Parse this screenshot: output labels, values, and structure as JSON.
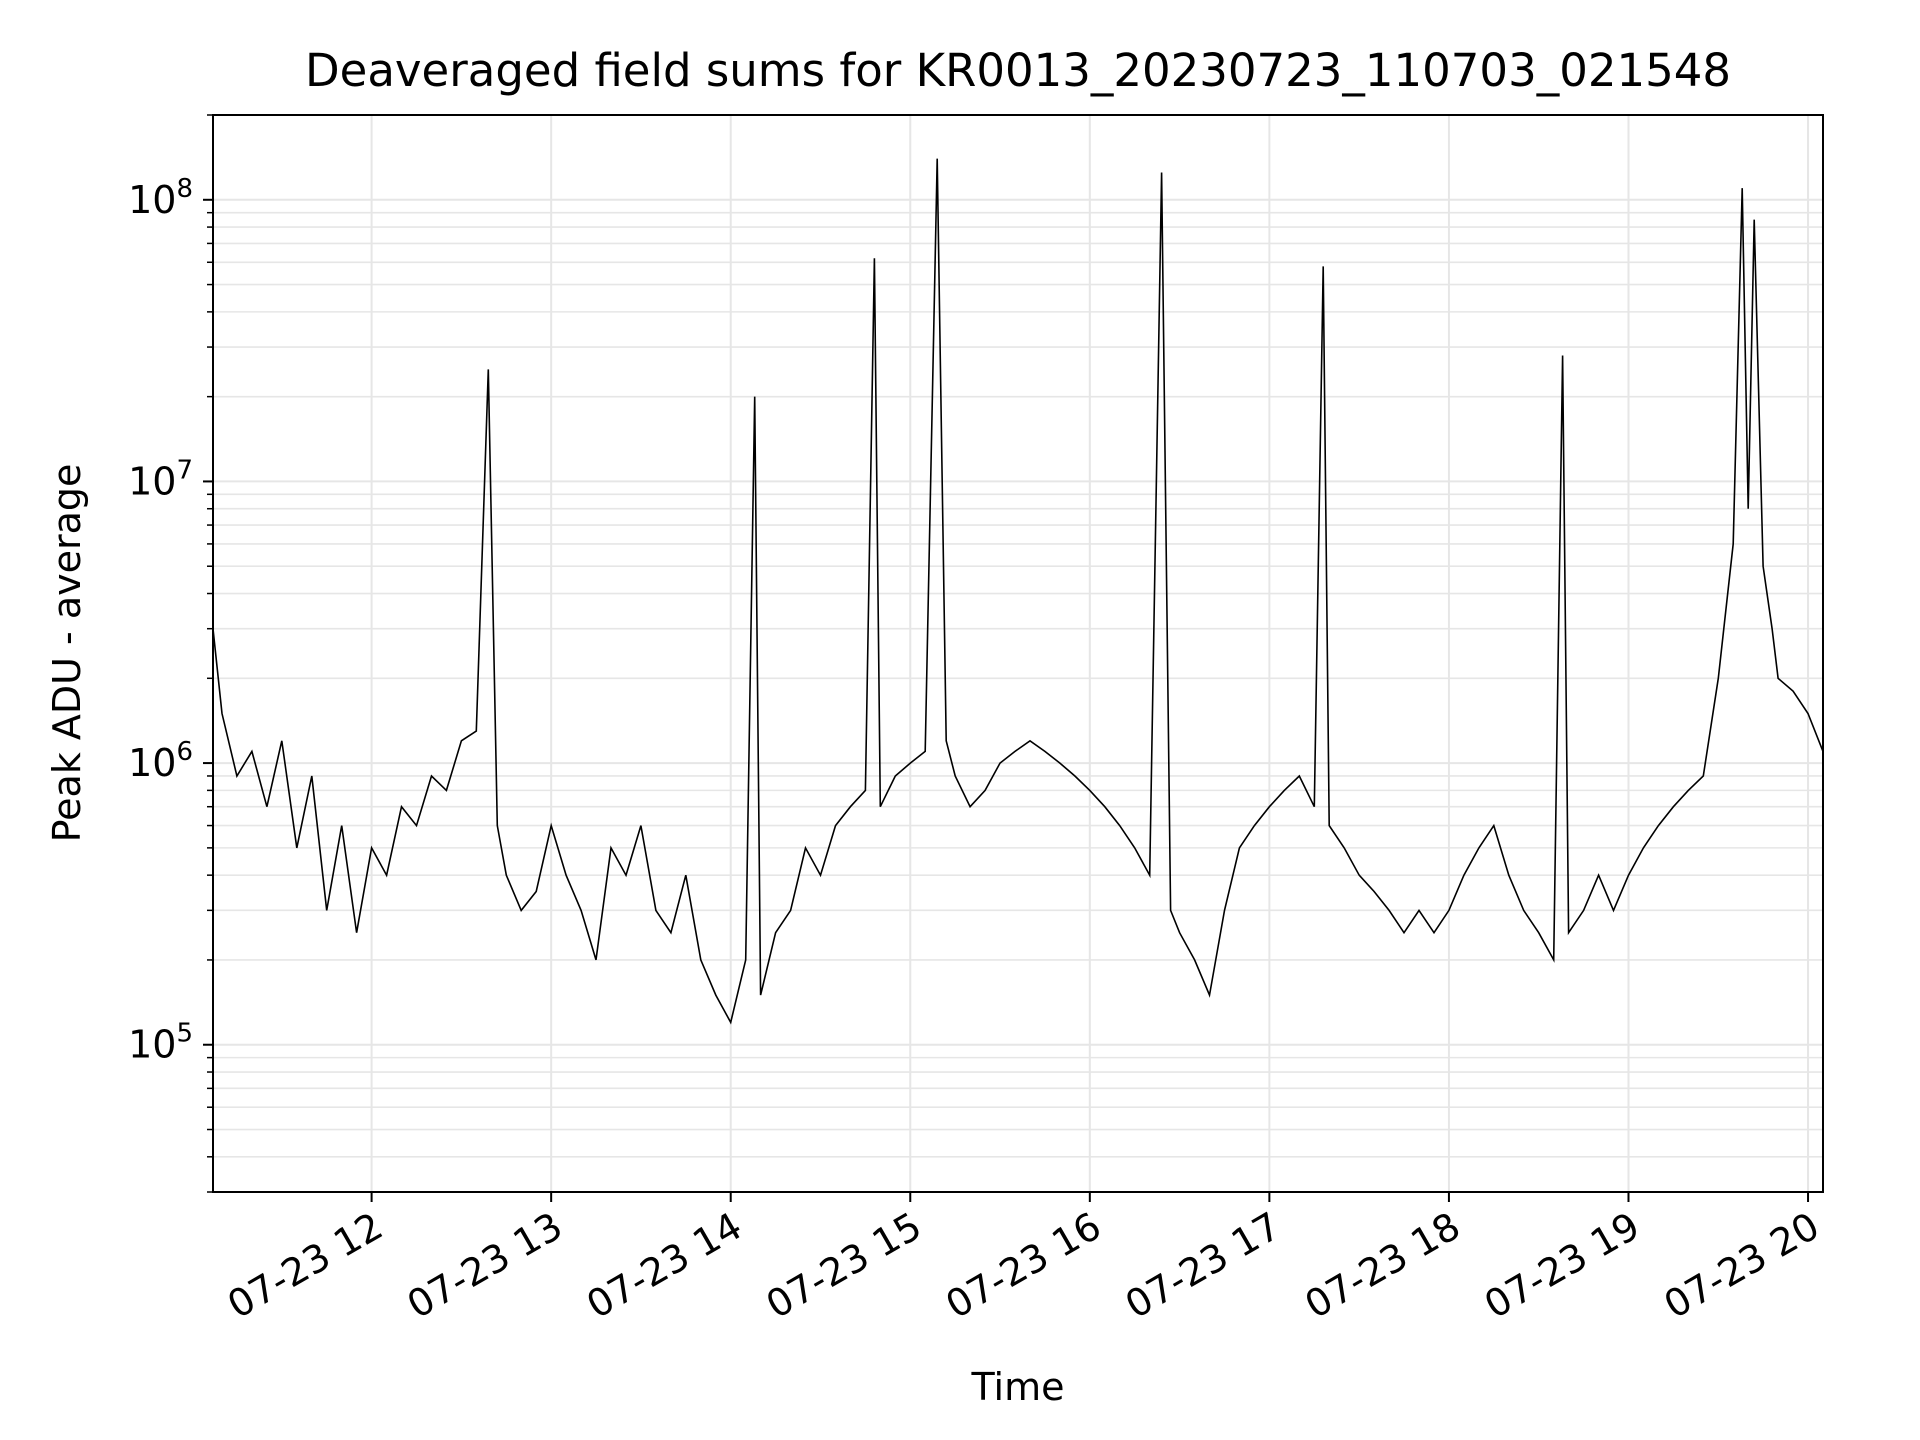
{
  "chart_data": {
    "type": "line",
    "title": "Deaveraged field sums for KR0013_20230723_110703_021548",
    "xlabel": "Time",
    "ylabel": "Peak ADU - average",
    "yscale": "log",
    "grid": true,
    "line_color": "#000000",
    "grid_color": "#e6e6e6",
    "xlim": [
      "07-23 11:07",
      "07-23 20:05"
    ],
    "ylim": [
      30000,
      200000000
    ],
    "x_ticks": [
      {
        "time": "07-23 12:00",
        "label": "07-23 12"
      },
      {
        "time": "07-23 13:00",
        "label": "07-23 13"
      },
      {
        "time": "07-23 14:00",
        "label": "07-23 14"
      },
      {
        "time": "07-23 15:00",
        "label": "07-23 15"
      },
      {
        "time": "07-23 16:00",
        "label": "07-23 16"
      },
      {
        "time": "07-23 17:00",
        "label": "07-23 17"
      },
      {
        "time": "07-23 18:00",
        "label": "07-23 18"
      },
      {
        "time": "07-23 19:00",
        "label": "07-23 19"
      },
      {
        "time": "07-23 20:00",
        "label": "07-23 20"
      }
    ],
    "y_ticks": [
      {
        "value": 100000,
        "base": "10",
        "exp": "5"
      },
      {
        "value": 1000000,
        "base": "10",
        "exp": "6"
      },
      {
        "value": 10000000,
        "base": "10",
        "exp": "7"
      },
      {
        "value": 100000000,
        "base": "10",
        "exp": "8"
      }
    ],
    "series": [
      {
        "points": [
          [
            "07-23 11:07",
            3000000
          ],
          [
            "07-23 11:10",
            1500000
          ],
          [
            "07-23 11:15",
            900000
          ],
          [
            "07-23 11:20",
            1100000
          ],
          [
            "07-23 11:25",
            700000
          ],
          [
            "07-23 11:30",
            1200000
          ],
          [
            "07-23 11:35",
            500000
          ],
          [
            "07-23 11:40",
            900000
          ],
          [
            "07-23 11:45",
            300000
          ],
          [
            "07-23 11:50",
            600000
          ],
          [
            "07-23 11:55",
            250000
          ],
          [
            "07-23 12:00",
            500000
          ],
          [
            "07-23 12:05",
            400000
          ],
          [
            "07-23 12:10",
            700000
          ],
          [
            "07-23 12:15",
            600000
          ],
          [
            "07-23 12:20",
            900000
          ],
          [
            "07-23 12:25",
            800000
          ],
          [
            "07-23 12:30",
            1200000
          ],
          [
            "07-23 12:35",
            1300000
          ],
          [
            "07-23 12:39",
            25000000
          ],
          [
            "07-23 12:42",
            600000
          ],
          [
            "07-23 12:45",
            400000
          ],
          [
            "07-23 12:50",
            300000
          ],
          [
            "07-23 12:55",
            350000
          ],
          [
            "07-23 13:00",
            600000
          ],
          [
            "07-23 13:05",
            400000
          ],
          [
            "07-23 13:10",
            300000
          ],
          [
            "07-23 13:15",
            200000
          ],
          [
            "07-23 13:20",
            500000
          ],
          [
            "07-23 13:25",
            400000
          ],
          [
            "07-23 13:30",
            600000
          ],
          [
            "07-23 13:35",
            300000
          ],
          [
            "07-23 13:40",
            250000
          ],
          [
            "07-23 13:45",
            400000
          ],
          [
            "07-23 13:50",
            200000
          ],
          [
            "07-23 13:55",
            150000
          ],
          [
            "07-23 14:00",
            120000
          ],
          [
            "07-23 14:05",
            200000
          ],
          [
            "07-23 14:08",
            20000000
          ],
          [
            "07-23 14:10",
            150000
          ],
          [
            "07-23 14:15",
            250000
          ],
          [
            "07-23 14:20",
            300000
          ],
          [
            "07-23 14:25",
            500000
          ],
          [
            "07-23 14:30",
            400000
          ],
          [
            "07-23 14:35",
            600000
          ],
          [
            "07-23 14:40",
            700000
          ],
          [
            "07-23 14:45",
            800000
          ],
          [
            "07-23 14:48",
            62000000
          ],
          [
            "07-23 14:50",
            700000
          ],
          [
            "07-23 14:55",
            900000
          ],
          [
            "07-23 15:00",
            1000000
          ],
          [
            "07-23 15:05",
            1100000
          ],
          [
            "07-23 15:09",
            140000000
          ],
          [
            "07-23 15:12",
            1200000
          ],
          [
            "07-23 15:15",
            900000
          ],
          [
            "07-23 15:20",
            700000
          ],
          [
            "07-23 15:25",
            800000
          ],
          [
            "07-23 15:30",
            1000000
          ],
          [
            "07-23 15:35",
            1100000
          ],
          [
            "07-23 15:40",
            1200000
          ],
          [
            "07-23 15:45",
            1100000
          ],
          [
            "07-23 15:50",
            1000000
          ],
          [
            "07-23 15:55",
            900000
          ],
          [
            "07-23 16:00",
            800000
          ],
          [
            "07-23 16:05",
            700000
          ],
          [
            "07-23 16:10",
            600000
          ],
          [
            "07-23 16:15",
            500000
          ],
          [
            "07-23 16:20",
            400000
          ],
          [
            "07-23 16:24",
            125000000
          ],
          [
            "07-23 16:27",
            300000
          ],
          [
            "07-23 16:30",
            250000
          ],
          [
            "07-23 16:35",
            200000
          ],
          [
            "07-23 16:40",
            150000
          ],
          [
            "07-23 16:45",
            300000
          ],
          [
            "07-23 16:50",
            500000
          ],
          [
            "07-23 16:55",
            600000
          ],
          [
            "07-23 17:00",
            700000
          ],
          [
            "07-23 17:05",
            800000
          ],
          [
            "07-23 17:10",
            900000
          ],
          [
            "07-23 17:15",
            700000
          ],
          [
            "07-23 17:18",
            58000000
          ],
          [
            "07-23 17:20",
            600000
          ],
          [
            "07-23 17:25",
            500000
          ],
          [
            "07-23 17:30",
            400000
          ],
          [
            "07-23 17:35",
            350000
          ],
          [
            "07-23 17:40",
            300000
          ],
          [
            "07-23 17:45",
            250000
          ],
          [
            "07-23 17:50",
            300000
          ],
          [
            "07-23 17:55",
            250000
          ],
          [
            "07-23 18:00",
            300000
          ],
          [
            "07-23 18:05",
            400000
          ],
          [
            "07-23 18:10",
            500000
          ],
          [
            "07-23 18:15",
            600000
          ],
          [
            "07-23 18:20",
            400000
          ],
          [
            "07-23 18:25",
            300000
          ],
          [
            "07-23 18:30",
            250000
          ],
          [
            "07-23 18:35",
            200000
          ],
          [
            "07-23 18:38",
            28000000
          ],
          [
            "07-23 18:40",
            250000
          ],
          [
            "07-23 18:45",
            300000
          ],
          [
            "07-23 18:50",
            400000
          ],
          [
            "07-23 18:55",
            300000
          ],
          [
            "07-23 19:00",
            400000
          ],
          [
            "07-23 19:05",
            500000
          ],
          [
            "07-23 19:10",
            600000
          ],
          [
            "07-23 19:15",
            700000
          ],
          [
            "07-23 19:20",
            800000
          ],
          [
            "07-23 19:25",
            900000
          ],
          [
            "07-23 19:30",
            2000000
          ],
          [
            "07-23 19:35",
            6000000
          ],
          [
            "07-23 19:38",
            110000000
          ],
          [
            "07-23 19:40",
            8000000
          ],
          [
            "07-23 19:42",
            85000000
          ],
          [
            "07-23 19:45",
            5000000
          ],
          [
            "07-23 19:48",
            3000000
          ],
          [
            "07-23 19:50",
            2000000
          ],
          [
            "07-23 19:55",
            1800000
          ],
          [
            "07-23 20:00",
            1500000
          ],
          [
            "07-23 20:05",
            1100000
          ]
        ]
      }
    ]
  }
}
